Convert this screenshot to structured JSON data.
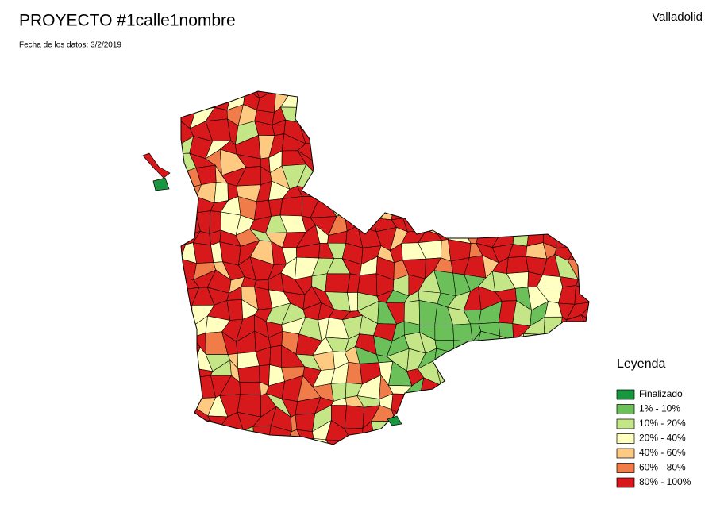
{
  "header": {
    "title": "PROYECTO #1calle1nombre",
    "subtitle": "Fecha de los datos: 3/2/2019",
    "region": "Valladolid"
  },
  "legend": {
    "title": "Leyenda",
    "items": [
      {
        "label": "Finalizado",
        "color": "#1a9641"
      },
      {
        "label": "1% - 10%",
        "color": "#6cc05a"
      },
      {
        "label": "10% - 20%",
        "color": "#c4e687"
      },
      {
        "label": "20% - 40%",
        "color": "#ffffc0"
      },
      {
        "label": "40% - 60%",
        "color": "#fec980"
      },
      {
        "label": "60% - 80%",
        "color": "#f07c4a"
      },
      {
        "label": "80% - 100%",
        "color": "#d7191c"
      }
    ]
  }
}
